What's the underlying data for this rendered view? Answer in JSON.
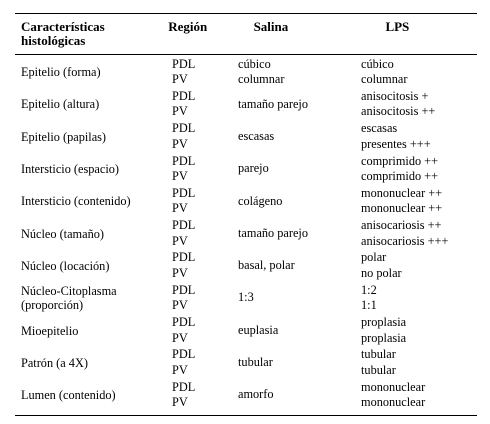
{
  "table": {
    "headers": {
      "feature": "Características histológicas",
      "region": "Región",
      "saline": "Salina",
      "lps": "LPS"
    },
    "rows": [
      {
        "feature": "Epitelio (forma)",
        "regions": [
          "PDL",
          "PV"
        ],
        "saline": [
          "cúbico",
          "columnar"
        ],
        "lps": [
          "cúbico",
          "columnar"
        ]
      },
      {
        "feature": "Epitelio (altura)",
        "regions": [
          "PDL",
          "PV"
        ],
        "saline": [
          "tamaño parejo"
        ],
        "lps": [
          "anisocitosis +",
          "anisocitosis ++"
        ]
      },
      {
        "feature": "Epitelio (papilas)",
        "regions": [
          "PDL",
          "PV"
        ],
        "saline": [
          "escasas"
        ],
        "lps": [
          "escasas",
          "presentes +++"
        ]
      },
      {
        "feature": "Intersticio (espacio)",
        "regions": [
          "PDL",
          "PV"
        ],
        "saline": [
          "parejo"
        ],
        "lps": [
          "comprimido ++",
          "comprimido ++"
        ]
      },
      {
        "feature": "Intersticio (contenido)",
        "regions": [
          "PDL",
          "PV"
        ],
        "saline": [
          "colágeno"
        ],
        "lps": [
          "mononuclear ++",
          "mononuclear ++"
        ]
      },
      {
        "feature": "Núcleo (tamaño)",
        "regions": [
          "PDL",
          "PV"
        ],
        "saline": [
          "tamaño parejo"
        ],
        "lps": [
          "anisocariosis ++",
          "anisocariosis +++"
        ]
      },
      {
        "feature": "Núcleo (locación)",
        "regions": [
          "PDL",
          "PV"
        ],
        "saline": [
          "basal, polar"
        ],
        "lps": [
          "polar",
          "no polar"
        ]
      },
      {
        "feature": "Núcleo-Citoplasma (proporción)",
        "regions": [
          "PDL",
          "PV"
        ],
        "saline": [
          "1:3"
        ],
        "lps": [
          "1:2",
          "1:1"
        ]
      },
      {
        "feature": "Mioepitelio",
        "regions": [
          "PDL",
          "PV"
        ],
        "saline": [
          "euplasia"
        ],
        "lps": [
          "proplasia",
          "proplasia"
        ]
      },
      {
        "feature": "Patrón (a 4X)",
        "regions": [
          "PDL",
          "PV"
        ],
        "saline": [
          "tubular"
        ],
        "lps": [
          "tubular",
          "tubular"
        ]
      },
      {
        "feature": "Lumen (contenido)",
        "regions": [
          "PDL",
          "PV"
        ],
        "saline": [
          "amorfo"
        ],
        "lps": [
          "mononuclear",
          "mononuclear"
        ]
      }
    ]
  }
}
